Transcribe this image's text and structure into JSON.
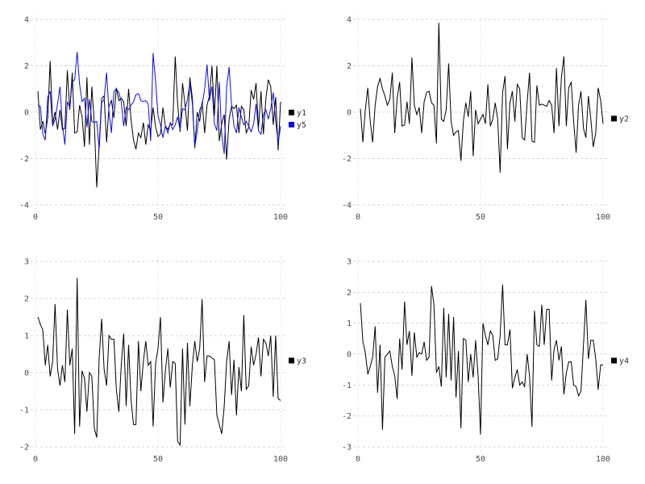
{
  "page": {
    "background": "#ffffff"
  },
  "style": {
    "grid_color": "#d4d4de",
    "tick_label_color": "#4a4a4a",
    "legend_text_color": "#303030",
    "line_width": 1,
    "grid_on": true
  },
  "chart_data": [
    {
      "type": "line",
      "position": "top-left",
      "title": "",
      "xlabel": "",
      "ylabel": "",
      "x_start": 1,
      "x_step": 1,
      "xlim": [
        0,
        100
      ],
      "xticks": [
        0,
        50,
        100
      ],
      "ylim": [
        -4,
        4
      ],
      "yticks": [
        -4,
        -2,
        0,
        2,
        4
      ],
      "legend_position": "right-center",
      "series": [
        {
          "name": "y1",
          "color": "#000000",
          "values": [
            0.9,
            -0.75,
            -0.4,
            -0.95,
            -0.25,
            2.2,
            -0.5,
            0.0,
            -0.75,
            0.1,
            -0.75,
            -0.7,
            1.8,
            0.1,
            1.7,
            -0.9,
            -0.85,
            0.3,
            -0.2,
            -1.5,
            1.5,
            -1.4,
            1.1,
            -0.5,
            -3.25,
            -1.45,
            0.6,
            0.7,
            -1.3,
            0.25,
            0.5,
            -0.25,
            1.05,
            0.5,
            0.6,
            0.45,
            -0.6,
            1.0,
            -0.35,
            -1.2,
            -1.6,
            -0.9,
            -1.1,
            -0.45,
            -1.4,
            -0.55,
            -0.8,
            0.2,
            -0.65,
            -1.05,
            -0.95,
            0.2,
            -0.6,
            -0.75,
            -0.5,
            -0.55,
            2.4,
            0.35,
            -0.85,
            1.25,
            0.35,
            -0.8,
            1.5,
            0.6,
            -1.55,
            0.0,
            -0.4,
            0.45,
            -0.9,
            0.3,
            0.7,
            2.0,
            -0.15,
            2.0,
            -1.25,
            -0.5,
            -0.1,
            -2.05,
            -0.3,
            0.25,
            0.15,
            0.3,
            -0.9,
            0.25,
            0.1,
            -0.9,
            -0.65,
            0.95,
            0.55,
            1.25,
            -0.7,
            0.9,
            -0.95,
            0.6,
            1.4,
            1.1,
            -0.55,
            0.65,
            -1.65,
            0.45
          ]
        },
        {
          "name": "y5",
          "color": "#0d0ddd",
          "values": [
            0.3,
            0.25,
            -0.95,
            -1.2,
            0.65,
            0.9,
            -0.6,
            -0.3,
            0.35,
            1.1,
            -0.55,
            -1.4,
            0.45,
            0.2,
            1.3,
            1.4,
            2.6,
            1.2,
            0.45,
            0.6,
            -0.65,
            0.55,
            -0.4,
            -0.45,
            -0.4,
            -1.6,
            0.4,
            0.55,
            1.7,
            0.0,
            -0.9,
            0.9,
            1.0,
            0.85,
            0.45,
            -0.6,
            0.2,
            0.1,
            0.3,
            0.45,
            0.75,
            0.8,
            0.5,
            0.45,
            0.5,
            0.35,
            -1.25,
            2.55,
            1.3,
            -0.15,
            -0.55,
            -1.1,
            -0.6,
            -0.9,
            -0.45,
            -0.75,
            -0.55,
            -0.2,
            -0.75,
            0.15,
            0.1,
            0.55,
            1.25,
            0.35,
            -1.5,
            -0.8,
            0.1,
            0.3,
            1.0,
            2.05,
            0.5,
            1.1,
            -0.5,
            -0.8,
            1.3,
            -0.95,
            -1.8,
            1.1,
            1.95,
            0.3,
            -0.6,
            -0.9,
            0.2,
            -0.2,
            -0.55,
            -0.4,
            -0.6,
            -0.85,
            -0.5,
            0.35,
            -0.8,
            -0.95,
            -0.1,
            0.1,
            -0.3,
            0.15,
            0.85,
            -0.4,
            -1.35,
            -0.6
          ]
        }
      ]
    },
    {
      "type": "line",
      "position": "top-right",
      "title": "",
      "xlabel": "",
      "ylabel": "",
      "x_start": 1,
      "x_step": 1,
      "xlim": [
        0,
        100
      ],
      "xticks": [
        0,
        50,
        100
      ],
      "ylim": [
        -4,
        4
      ],
      "yticks": [
        -4,
        -2,
        0,
        2,
        4
      ],
      "legend_position": "right-center",
      "series": [
        {
          "name": "y2",
          "color": "#000000",
          "values": [
            0.15,
            -1.3,
            0.1,
            1.05,
            -0.4,
            -1.3,
            0.3,
            1.1,
            1.45,
            1.0,
            0.7,
            0.3,
            0.55,
            1.7,
            -0.9,
            0.6,
            1.3,
            -0.6,
            -0.55,
            0.45,
            -0.5,
            2.35,
            0.3,
            -0.1,
            0.2,
            -0.9,
            0.45,
            0.85,
            0.9,
            0.4,
            0.3,
            -1.35,
            3.85,
            -0.3,
            -0.4,
            0.1,
            2.1,
            -0.4,
            -1.0,
            -0.85,
            -0.8,
            -2.1,
            -0.4,
            0.4,
            -0.2,
            0.9,
            -1.9,
            0.1,
            -0.5,
            -0.3,
            -0.1,
            -0.5,
            1.2,
            -0.6,
            -0.3,
            0.4,
            -0.3,
            -2.6,
            0.85,
            1.55,
            -1.6,
            0.4,
            0.9,
            -0.4,
            1.2,
            1.0,
            -1.1,
            -1.2,
            0.4,
            1.7,
            -1.25,
            -1.3,
            1.15,
            0.3,
            0.35,
            0.3,
            0.25,
            0.5,
            0.3,
            -0.9,
            1.9,
            -0.6,
            1.5,
            2.4,
            -0.6,
            1.05,
            1.3,
            -0.4,
            -1.75,
            0.3,
            0.9,
            -0.7,
            -1.1,
            0.7,
            -0.3,
            -1.5,
            -0.9,
            1.05,
            0.5,
            -0.5
          ]
        }
      ]
    },
    {
      "type": "line",
      "position": "bottom-left",
      "title": "",
      "xlabel": "",
      "ylabel": "",
      "x_start": 1,
      "x_step": 1,
      "xlim": [
        0,
        100
      ],
      "xticks": [
        0,
        50,
        100
      ],
      "ylim": [
        -2,
        3
      ],
      "yticks": [
        -2,
        -1,
        0,
        1,
        2,
        3
      ],
      "legend_position": "right-center",
      "series": [
        {
          "name": "y3",
          "color": "#000000",
          "values": [
            1.5,
            1.3,
            1.15,
            0.2,
            0.75,
            -0.1,
            0.3,
            1.85,
            0.1,
            -0.35,
            0.2,
            -0.25,
            1.7,
            0.2,
            0.65,
            -1.65,
            2.55,
            -1.45,
            0.05,
            -0.15,
            -1.05,
            0.0,
            -0.1,
            -1.5,
            -1.75,
            0.4,
            1.45,
            0.1,
            -0.35,
            1.0,
            0.9,
            0.9,
            -0.45,
            -1.05,
            0.2,
            1.05,
            -0.9,
            0.75,
            -0.75,
            -1.4,
            -1.4,
            0.85,
            -0.5,
            0.3,
            0.85,
            0.2,
            0.3,
            -1.45,
            0.25,
            0.65,
            1.5,
            -0.8,
            0.05,
            0.65,
            -0.4,
            0.3,
            0.25,
            -1.85,
            -1.95,
            0.65,
            -1.4,
            0.8,
            -0.9,
            0.2,
            0.85,
            0.3,
            0.65,
            1.98,
            -0.25,
            0.45,
            0.45,
            0.4,
            0.35,
            -1.15,
            -1.4,
            -1.65,
            -0.9,
            0.3,
            0.85,
            -0.6,
            0.35,
            -1.15,
            0.15,
            -0.5,
            1.55,
            -0.45,
            -0.35,
            0.7,
            0.2,
            0.5,
            0.95,
            -0.1,
            0.9,
            0.8,
            0.45,
            1.0,
            -0.65,
            1.0,
            -0.7,
            -0.75
          ]
        }
      ]
    },
    {
      "type": "line",
      "position": "bottom-right",
      "title": "",
      "xlabel": "",
      "ylabel": "",
      "x_start": 1,
      "x_step": 1,
      "xlim": [
        0,
        100
      ],
      "xticks": [
        0,
        50,
        100
      ],
      "ylim": [
        -3,
        3
      ],
      "yticks": [
        -3,
        -2,
        -1,
        0,
        1,
        2,
        3
      ],
      "legend_position": "right-center",
      "series": [
        {
          "name": "y4",
          "color": "#000000",
          "values": [
            1.65,
            0.4,
            0.05,
            -0.65,
            -0.4,
            -0.1,
            0.9,
            -1.25,
            0.3,
            -2.45,
            -0.1,
            0.0,
            0.1,
            -0.4,
            -0.7,
            -1.45,
            0.5,
            -0.5,
            1.7,
            0.3,
            0.75,
            -0.7,
            0.7,
            -0.1,
            0.05,
            0.0,
            0.4,
            -0.2,
            -0.1,
            2.2,
            1.6,
            -0.6,
            -0.4,
            -1.05,
            1.5,
            -0.75,
            1.3,
            -0.85,
            1.2,
            -1.4,
            0.1,
            -2.4,
            0.5,
            0.45,
            -0.9,
            0.0,
            -0.75,
            0.45,
            -0.7,
            -2.6,
            1.0,
            0.6,
            0.3,
            0.75,
            0.6,
            -0.2,
            -0.15,
            0.6,
            2.25,
            0.3,
            0.3,
            0.8,
            -1.1,
            -0.75,
            -0.5,
            -1.0,
            -0.9,
            -1.05,
            0.0,
            -0.7,
            -2.35,
            1.4,
            0.3,
            0.25,
            1.6,
            0.3,
            1.45,
            1.45,
            -0.85,
            0.15,
            0.45,
            -0.2,
            0.25,
            -1.3,
            -0.6,
            -0.25,
            -0.25,
            -1.0,
            -1.05,
            -1.35,
            -1.2,
            0.3,
            1.75,
            -0.15,
            0.45,
            0.45,
            -0.15,
            -1.15,
            -0.35,
            -0.35
          ]
        }
      ]
    }
  ]
}
